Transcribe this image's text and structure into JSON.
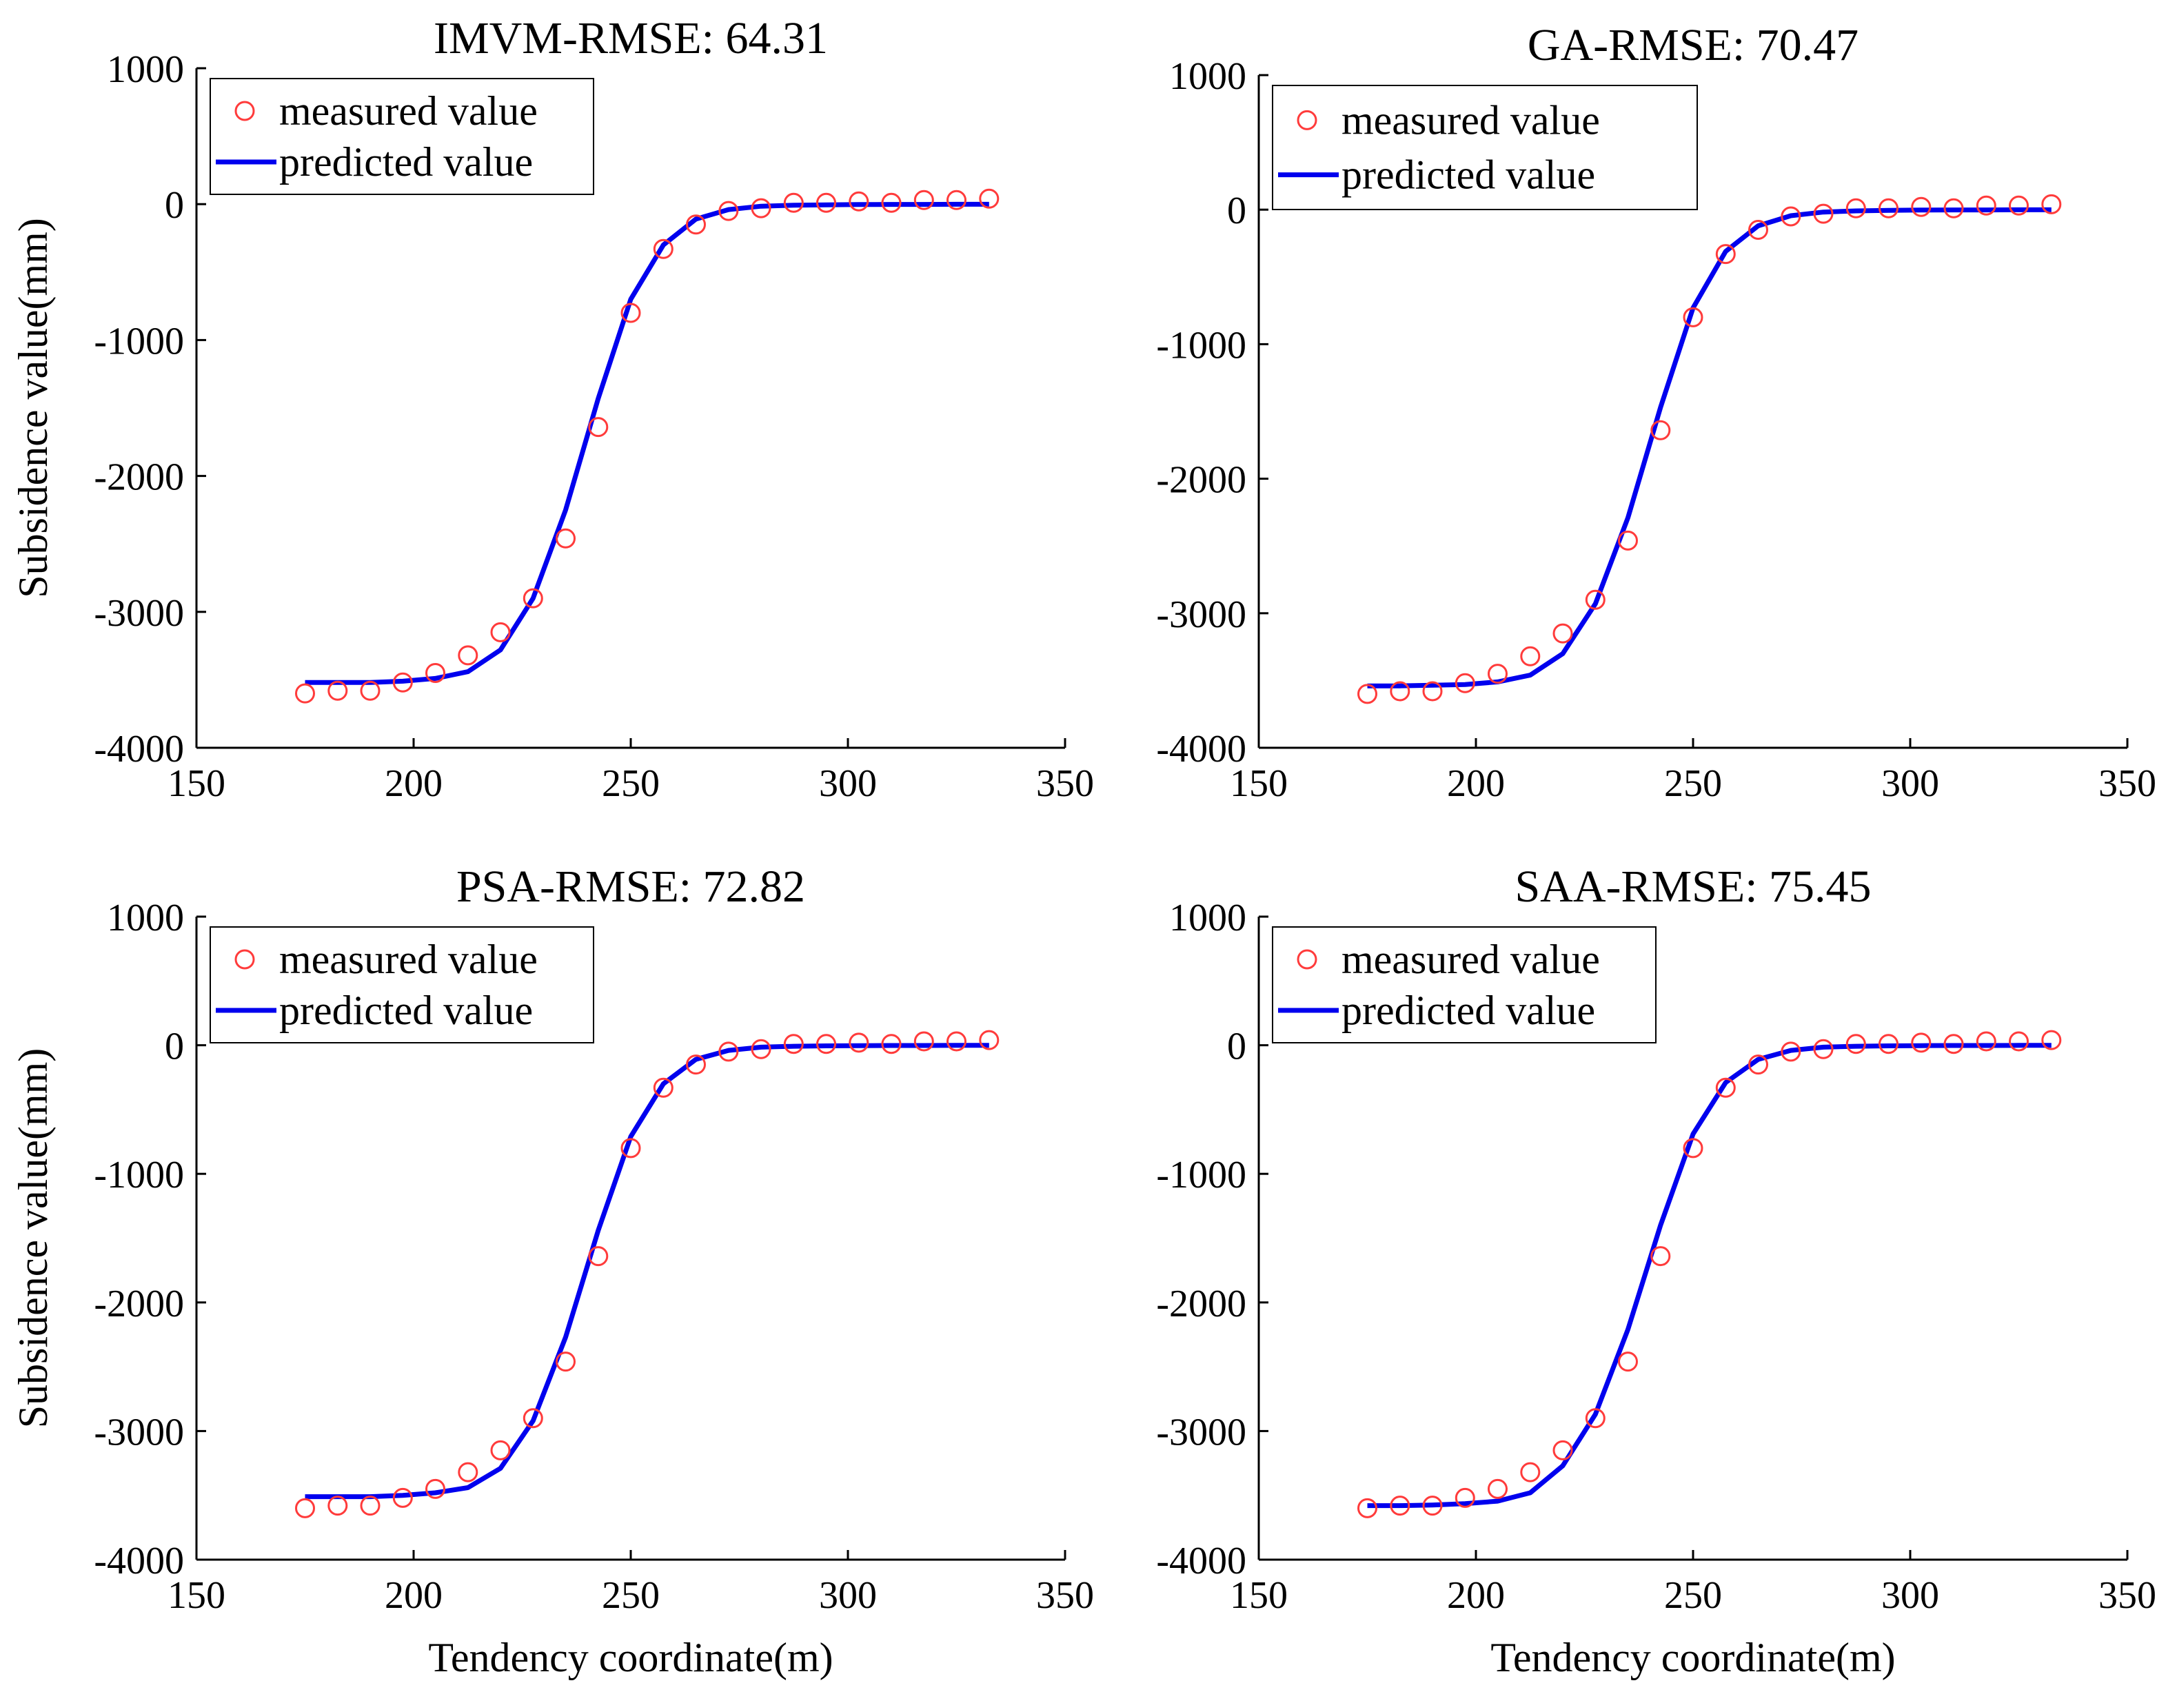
{
  "legend": {
    "measured": "measured value",
    "predicted": "predicted value"
  },
  "colors": {
    "measured": "#ff3b3b",
    "predicted": "#0000ee",
    "axis": "#000000"
  },
  "chart_data": [
    {
      "type": "line",
      "title": "IMVM-RMSE: 64.31",
      "xlabel": "",
      "ylabel": "Subsidence value(mm)",
      "xlim": [
        150,
        350
      ],
      "ylim": [
        -4000,
        1000
      ],
      "xticks": [
        150,
        200,
        250,
        300,
        350
      ],
      "yticks": [
        -4000,
        -3000,
        -2000,
        -1000,
        0,
        1000
      ],
      "legend_position": "top-left",
      "series": [
        {
          "name": "measured value",
          "marker": "circle",
          "x": [
            175,
            182.5,
            190,
            197.5,
            205,
            212.5,
            220,
            227.5,
            235,
            242.5,
            250,
            257.5,
            265,
            272.5,
            280,
            287.5,
            295,
            302.5,
            310,
            317.5,
            325,
            332.5
          ],
          "y": [
            -3600,
            -3580,
            -3580,
            -3520,
            -3450,
            -3320,
            -3150,
            -2900,
            -2460,
            -1640,
            -800,
            -330,
            -150,
            -50,
            -30,
            10,
            10,
            20,
            10,
            30,
            30,
            40
          ]
        },
        {
          "name": "predicted value",
          "marker": "line",
          "x": [
            175,
            182.5,
            190,
            197.5,
            205,
            212.5,
            220,
            227.5,
            235,
            242.5,
            250,
            257.5,
            265,
            272.5,
            280,
            287.5,
            295,
            302.5,
            310,
            317.5,
            325,
            332.5
          ],
          "y": [
            -3520,
            -3520,
            -3520,
            -3510,
            -3490,
            -3440,
            -3280,
            -2900,
            -2250,
            -1430,
            -700,
            -300,
            -110,
            -40,
            -15,
            -8,
            -5,
            -3,
            -2,
            -2,
            -1,
            -1
          ]
        }
      ]
    },
    {
      "type": "line",
      "title": "GA-RMSE: 70.47",
      "xlabel": "",
      "ylabel": "",
      "xlim": [
        150,
        350
      ],
      "ylim": [
        -4000,
        1000
      ],
      "xticks": [
        150,
        200,
        250,
        300,
        350
      ],
      "yticks": [
        -4000,
        -3000,
        -2000,
        -1000,
        0,
        1000
      ],
      "legend_position": "top-left",
      "series": [
        {
          "name": "measured value",
          "marker": "circle",
          "x": [
            175,
            182.5,
            190,
            197.5,
            205,
            212.5,
            220,
            227.5,
            235,
            242.5,
            250,
            257.5,
            265,
            272.5,
            280,
            287.5,
            295,
            302.5,
            310,
            317.5,
            325,
            332.5
          ],
          "y": [
            -3600,
            -3580,
            -3580,
            -3520,
            -3450,
            -3320,
            -3150,
            -2900,
            -2460,
            -1640,
            -800,
            -330,
            -150,
            -50,
            -30,
            10,
            10,
            20,
            10,
            30,
            30,
            40
          ]
        },
        {
          "name": "predicted value",
          "marker": "line",
          "x": [
            175,
            182.5,
            190,
            197.5,
            205,
            212.5,
            220,
            227.5,
            235,
            242.5,
            250,
            257.5,
            265,
            272.5,
            280,
            287.5,
            295,
            302.5,
            310,
            317.5,
            325,
            332.5
          ],
          "y": [
            -3540,
            -3540,
            -3535,
            -3530,
            -3510,
            -3460,
            -3300,
            -2930,
            -2290,
            -1470,
            -730,
            -310,
            -120,
            -45,
            -18,
            -9,
            -5,
            -3,
            -2,
            -2,
            -1,
            -1
          ]
        }
      ]
    },
    {
      "type": "line",
      "title": "PSA-RMSE: 72.82",
      "xlabel": "Tendency coordinate(m)",
      "ylabel": "Subsidence value(mm)",
      "xlim": [
        150,
        350
      ],
      "ylim": [
        -4000,
        1000
      ],
      "xticks": [
        150,
        200,
        250,
        300,
        350
      ],
      "yticks": [
        -4000,
        -3000,
        -2000,
        -1000,
        0,
        1000
      ],
      "legend_position": "top-left",
      "series": [
        {
          "name": "measured value",
          "marker": "circle",
          "x": [
            175,
            182.5,
            190,
            197.5,
            205,
            212.5,
            220,
            227.5,
            235,
            242.5,
            250,
            257.5,
            265,
            272.5,
            280,
            287.5,
            295,
            302.5,
            310,
            317.5,
            325,
            332.5
          ],
          "y": [
            -3600,
            -3580,
            -3580,
            -3520,
            -3450,
            -3320,
            -3150,
            -2900,
            -2460,
            -1640,
            -800,
            -330,
            -150,
            -50,
            -30,
            10,
            10,
            20,
            10,
            30,
            30,
            40
          ]
        },
        {
          "name": "predicted value",
          "marker": "line",
          "x": [
            175,
            182.5,
            190,
            197.5,
            205,
            212.5,
            220,
            227.5,
            235,
            242.5,
            250,
            257.5,
            265,
            272.5,
            280,
            287.5,
            295,
            302.5,
            310,
            317.5,
            325,
            332.5
          ],
          "y": [
            -3510,
            -3510,
            -3510,
            -3500,
            -3480,
            -3440,
            -3290,
            -2920,
            -2270,
            -1440,
            -710,
            -300,
            -110,
            -40,
            -15,
            -8,
            -5,
            -3,
            -2,
            -2,
            -1,
            -1
          ]
        }
      ]
    },
    {
      "type": "line",
      "title": "SAA-RMSE: 75.45",
      "xlabel": "Tendency coordinate(m)",
      "ylabel": "",
      "xlim": [
        150,
        350
      ],
      "ylim": [
        -4000,
        1000
      ],
      "xticks": [
        150,
        200,
        250,
        300,
        350
      ],
      "yticks": [
        -4000,
        -3000,
        -2000,
        -1000,
        0,
        1000
      ],
      "legend_position": "top-left",
      "series": [
        {
          "name": "measured value",
          "marker": "circle",
          "x": [
            175,
            182.5,
            190,
            197.5,
            205,
            212.5,
            220,
            227.5,
            235,
            242.5,
            250,
            257.5,
            265,
            272.5,
            280,
            287.5,
            295,
            302.5,
            310,
            317.5,
            325,
            332.5
          ],
          "y": [
            -3600,
            -3580,
            -3580,
            -3520,
            -3450,
            -3320,
            -3150,
            -2900,
            -2460,
            -1640,
            -800,
            -330,
            -150,
            -50,
            -30,
            10,
            10,
            20,
            10,
            30,
            30,
            40
          ]
        },
        {
          "name": "predicted value",
          "marker": "line",
          "x": [
            175,
            182.5,
            190,
            197.5,
            205,
            212.5,
            220,
            227.5,
            235,
            242.5,
            250,
            257.5,
            265,
            272.5,
            280,
            287.5,
            295,
            302.5,
            310,
            317.5,
            325,
            332.5
          ],
          "y": [
            -3580,
            -3580,
            -3575,
            -3565,
            -3545,
            -3480,
            -3270,
            -2870,
            -2210,
            -1400,
            -690,
            -290,
            -110,
            -40,
            -15,
            -8,
            -5,
            -3,
            -2,
            -2,
            -1,
            -1
          ]
        }
      ]
    }
  ]
}
